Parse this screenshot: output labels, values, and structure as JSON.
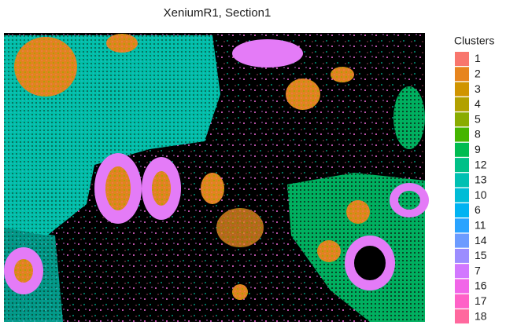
{
  "chart_data": {
    "type": "spatial",
    "title": "XeniumR1, Section1",
    "legend_title": "Clusters",
    "series": [
      {
        "name": "1",
        "color": "#F8766D"
      },
      {
        "name": "2",
        "color": "#E7851E"
      },
      {
        "name": "3",
        "color": "#D09400"
      },
      {
        "name": "4",
        "color": "#B2A100"
      },
      {
        "name": "5",
        "color": "#89AC00"
      },
      {
        "name": "8",
        "color": "#45B500"
      },
      {
        "name": "9",
        "color": "#00BC51"
      },
      {
        "name": "12",
        "color": "#00C087"
      },
      {
        "name": "13",
        "color": "#00C0B2"
      },
      {
        "name": "10",
        "color": "#00BCD6"
      },
      {
        "name": "6",
        "color": "#00B3F2"
      },
      {
        "name": "11",
        "color": "#29A3FF"
      },
      {
        "name": "14",
        "color": "#6C9BFF"
      },
      {
        "name": "15",
        "color": "#9C8DFF"
      },
      {
        "name": "7",
        "color": "#D277FF"
      },
      {
        "name": "16",
        "color": "#F166E8"
      },
      {
        "name": "17",
        "color": "#FF61C7"
      },
      {
        "name": "18",
        "color": "#FF689E"
      }
    ]
  }
}
